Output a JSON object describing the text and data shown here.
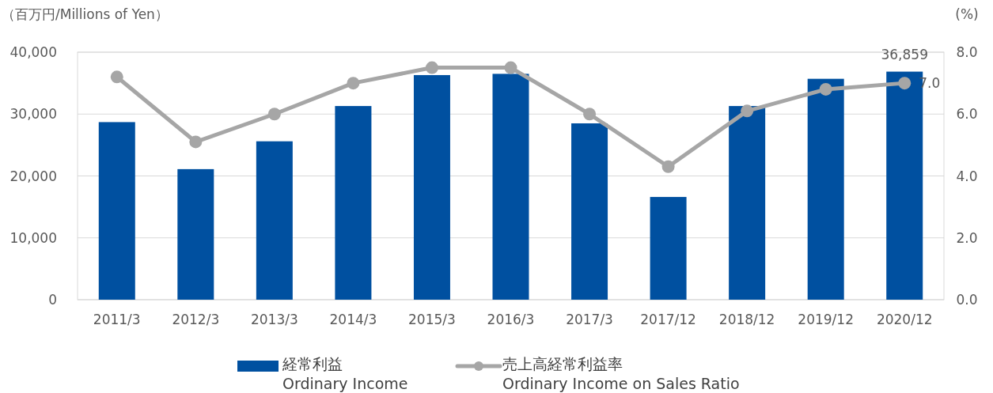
{
  "chart_data": {
    "type": "bar",
    "ylabel": "（百万円/Millions of Yen）",
    "y2label": "(%)",
    "categories": [
      "2011/3",
      "2012/3",
      "2013/3",
      "2014/3",
      "2015/3",
      "2016/3",
      "2017/3",
      "2017/12",
      "2018/12",
      "2019/12",
      "2020/12"
    ],
    "series": [
      {
        "name": "経常利益\nOrdinary Income",
        "color": "#0050a0",
        "values": [
          28700,
          21100,
          25600,
          31300,
          36300,
          36500,
          28500,
          16600,
          31300,
          35700,
          36859
        ],
        "value_labels": [
          null,
          null,
          null,
          null,
          null,
          null,
          null,
          null,
          null,
          null,
          "36,859"
        ]
      },
      {
        "name": "売上高経常利益率\nOrdinary Income on Sales Ratio",
        "type": "line",
        "axis": "y2",
        "color": "#a6a6a6",
        "marker": "circle",
        "values": [
          7.2,
          5.1,
          6.0,
          7.0,
          7.5,
          7.5,
          6.0,
          4.3,
          6.1,
          6.8,
          7.0
        ],
        "value_labels": [
          null,
          null,
          null,
          null,
          null,
          null,
          null,
          null,
          null,
          null,
          "7.0"
        ]
      }
    ],
    "ylim": [
      0,
      40000
    ],
    "yticks": [
      {
        "value": 0,
        "label": "0"
      },
      {
        "value": 10000,
        "label": "10,000"
      },
      {
        "value": 20000,
        "label": "20,000"
      },
      {
        "value": 30000,
        "label": "30,000"
      },
      {
        "value": 40000,
        "label": "40,000"
      }
    ],
    "y2lim": [
      0,
      8
    ],
    "y2ticks": [
      {
        "value": 0,
        "label": "0.0"
      },
      {
        "value": 2,
        "label": "2.0"
      },
      {
        "value": 4,
        "label": "4.0"
      },
      {
        "value": 6,
        "label": "6.0"
      },
      {
        "value": 8,
        "label": "8.0"
      }
    ],
    "grid": "y",
    "legend": "bottom"
  }
}
